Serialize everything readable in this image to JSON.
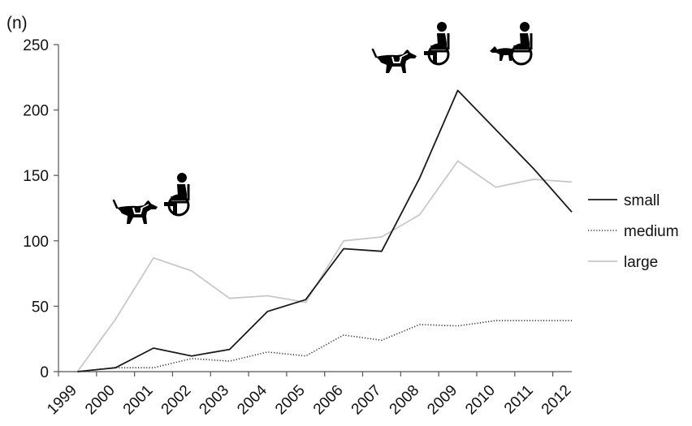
{
  "chart_data": {
    "type": "line",
    "title": "",
    "xlabel": "",
    "ylabel": "(n)",
    "x": [
      "1999",
      "2000",
      "2001",
      "2002",
      "2003",
      "2004",
      "2005",
      "2006",
      "2007",
      "2008",
      "2009",
      "2010",
      "2011",
      "2012"
    ],
    "ylim": [
      0,
      250
    ],
    "yticks": [
      0,
      50,
      100,
      150,
      200,
      250
    ],
    "grid": false,
    "legend_position": "right",
    "series": [
      {
        "name": "small",
        "color": "#1a1a1a",
        "style": "solid",
        "values": [
          0,
          3,
          18,
          12,
          17,
          46,
          55,
          94,
          92,
          148,
          215,
          185,
          155,
          122
        ]
      },
      {
        "name": "medium",
        "color": "#333333",
        "style": "dotted",
        "values": [
          0,
          3,
          3,
          10,
          8,
          15,
          12,
          28,
          24,
          36,
          35,
          39,
          39,
          39
        ]
      },
      {
        "name": "large",
        "color": "#c8c8c8",
        "style": "solid",
        "values": [
          0,
          40,
          87,
          77,
          56,
          58,
          53,
          100,
          103,
          120,
          161,
          141,
          147,
          145
        ]
      }
    ],
    "annotations": [
      {
        "icons": [
          "dog-icon",
          "wheelchair-user-icon"
        ],
        "near_x": "2001"
      },
      {
        "icons": [
          "dog-icon",
          "wheelchair-user-icon"
        ],
        "near_x": "2008"
      },
      {
        "icons": [
          "small-dog-on-lap-wheelchair-icon"
        ],
        "near_x": "2010"
      }
    ]
  }
}
